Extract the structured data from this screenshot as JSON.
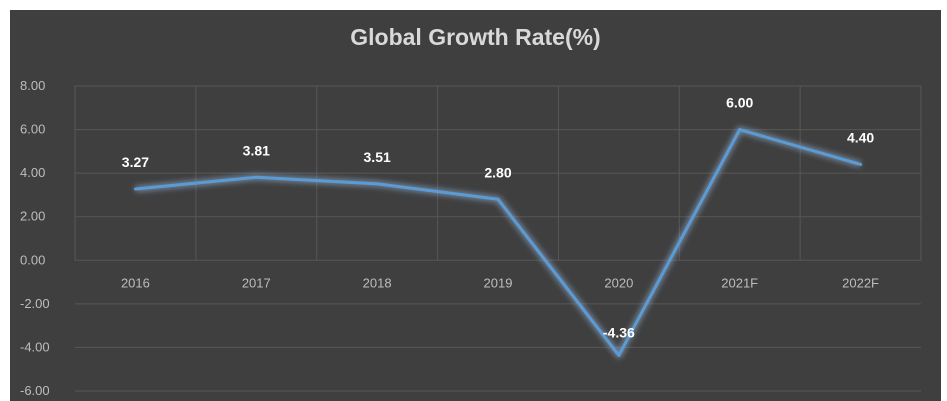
{
  "colors": {
    "background": "#3f3f3f",
    "line": "#5b9bd5",
    "glow": "#9cc3ea",
    "grid": "#575757",
    "text": "#bdbdbd",
    "title": "#d9d9d9"
  },
  "chart_data": {
    "type": "line",
    "title": "Global Growth Rate(%)",
    "categories": [
      "2016",
      "2017",
      "2018",
      "2019",
      "2020",
      "2021F",
      "2022F"
    ],
    "values": [
      3.27,
      3.81,
      3.51,
      2.8,
      -4.36,
      6.0,
      4.4
    ],
    "data_labels": [
      "3.27",
      "3.81",
      "3.51",
      "2.80",
      "-4.36",
      "6.00",
      "4.40"
    ],
    "yticks": [
      "8.00",
      "6.00",
      "4.00",
      "2.00",
      "0.00",
      "-2.00",
      "-4.00",
      "-6.00"
    ],
    "ylim": [
      -6,
      8
    ],
    "xlabel": "",
    "ylabel": "",
    "grid": true,
    "legend": "none"
  }
}
